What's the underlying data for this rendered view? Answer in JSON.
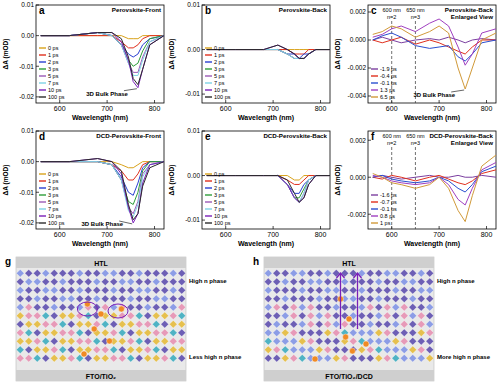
{
  "chart_data": [
    {
      "type": "line",
      "label": "a",
      "title": "Perovskite-Front",
      "x_label": "Wavelength (nm)",
      "y_label": "ΔA (mOD)",
      "xlim": [
        550,
        820
      ],
      "xticks": [
        600,
        700,
        800
      ],
      "ylim": [
        -0.022,
        0.01
      ],
      "yticks": [
        -0.02,
        -0.01,
        {
          "value": 0,
          "label": "0.00"
        },
        0.01
      ],
      "legend": "lower left",
      "annotations": [
        {
          "text": "3D Bulk Phase"
        }
      ],
      "x": [
        560,
        620,
        680,
        710,
        730,
        745,
        755,
        765,
        775,
        790,
        820
      ],
      "series": [
        {
          "name": "0 ps",
          "color": "#d9a21b",
          "values": [
            0,
            0,
            0,
            0,
            0,
            -0.001,
            -0.001,
            -0.001,
            0,
            0,
            0
          ]
        },
        {
          "name": "1 ps",
          "color": "#e0301e",
          "values": [
            0,
            0,
            0,
            0,
            -0.002,
            -0.004,
            -0.004,
            -0.003,
            -0.001,
            0,
            0
          ]
        },
        {
          "name": "2 ps",
          "color": "#2a3fd1",
          "values": [
            0,
            0,
            0.001,
            0,
            -0.003,
            -0.006,
            -0.007,
            -0.006,
            -0.003,
            -0.001,
            0
          ]
        },
        {
          "name": "3 ps",
          "color": "#2e9e3a",
          "values": [
            0,
            0,
            0.001,
            0,
            -0.003,
            -0.008,
            -0.01,
            -0.009,
            -0.005,
            -0.001,
            0
          ]
        },
        {
          "name": "5 ps",
          "color": "#9b59b6",
          "values": [
            0,
            0,
            0.001,
            0,
            -0.003,
            -0.009,
            -0.012,
            -0.012,
            -0.007,
            -0.002,
            0
          ]
        },
        {
          "name": "7 ps",
          "color": "#7fd3e6",
          "values": [
            0,
            0,
            0.001,
            0,
            -0.003,
            -0.009,
            -0.013,
            -0.013,
            -0.008,
            -0.002,
            0
          ]
        },
        {
          "name": "10 ps",
          "color": "#7a1fb8",
          "values": [
            0,
            0,
            0.001,
            0.001,
            -0.002,
            -0.008,
            -0.015,
            -0.017,
            -0.011,
            -0.003,
            0
          ]
        },
        {
          "name": "100 ps",
          "color": "#2b2b2b",
          "values": [
            0,
            0,
            0.001,
            0.001,
            -0.001,
            -0.007,
            -0.014,
            -0.016,
            -0.011,
            -0.003,
            0
          ]
        }
      ]
    },
    {
      "type": "line",
      "label": "b",
      "title": "Perovskite-Back",
      "x_label": "Wavelength (nm)",
      "y_label": "ΔA (mOD)",
      "xlim": [
        550,
        820
      ],
      "xticks": [
        600,
        700,
        800
      ],
      "ylim": [
        -0.012,
        0.01
      ],
      "yticks": [
        -0.01,
        {
          "value": 0,
          "label": "0.00"
        },
        0.01
      ],
      "legend": "lower left",
      "annotations": [],
      "x": [
        560,
        620,
        680,
        710,
        730,
        745,
        755,
        765,
        775,
        790,
        820
      ],
      "series": [
        {
          "name": "0 ps",
          "color": "#d9a21b",
          "values": [
            0,
            0,
            0,
            0,
            0,
            0,
            0,
            0,
            0,
            0,
            0
          ]
        },
        {
          "name": "1 ps",
          "color": "#e0301e",
          "values": [
            0,
            0,
            0,
            0,
            0,
            -0.001,
            -0.001,
            -0.001,
            0,
            0,
            0
          ]
        },
        {
          "name": "2 ps",
          "color": "#2a3fd1",
          "values": [
            0,
            0,
            0,
            0,
            -0.001,
            -0.001,
            -0.002,
            -0.001,
            -0.001,
            0,
            0
          ]
        },
        {
          "name": "3 ps",
          "color": "#2e9e3a",
          "values": [
            0,
            0,
            0,
            0,
            -0.001,
            -0.002,
            -0.002,
            -0.002,
            -0.001,
            0,
            0
          ]
        },
        {
          "name": "5 ps",
          "color": "#9b59b6",
          "values": [
            0,
            0,
            0,
            0,
            -0.001,
            -0.002,
            -0.002,
            -0.002,
            -0.001,
            0,
            0
          ]
        },
        {
          "name": "7 ps",
          "color": "#7fd3e6",
          "values": [
            0,
            0,
            0,
            0,
            -0.001,
            -0.002,
            -0.002,
            -0.002,
            -0.001,
            0,
            0
          ]
        },
        {
          "name": "10 ps",
          "color": "#7a1fb8",
          "values": [
            0,
            0,
            0,
            0.001,
            0,
            -0.001,
            -0.002,
            -0.002,
            -0.001,
            0,
            0
          ]
        },
        {
          "name": "100 ps",
          "color": "#2b2b2b",
          "values": [
            0,
            0,
            0,
            0.001,
            0,
            -0.001,
            -0.002,
            -0.002,
            -0.001,
            0,
            0
          ]
        }
      ]
    },
    {
      "type": "line",
      "label": "c",
      "title": "Perovskite-Back",
      "subtitle": "Enlarged View",
      "x_label": "Wavelength (nm)",
      "y_label": "ΔA (mOD)",
      "xlim": [
        550,
        820
      ],
      "xticks": [
        600,
        700,
        800
      ],
      "ylim": [
        -0.0045,
        0.0025
      ],
      "yticks": [
        -0.004,
        -0.002,
        {
          "value": 0,
          "label": "0.000"
        },
        0.002
      ],
      "legend": "lower left",
      "annotations": [
        {
          "text": "3D Bulk Phase"
        }
      ],
      "vlines": [
        {
          "x": 600,
          "label": "600 nm",
          "sub": "n=2"
        },
        {
          "x": 650,
          "label": "650 nm",
          "sub": "n=3"
        }
      ],
      "x": [
        560,
        580,
        600,
        620,
        650,
        680,
        700,
        720,
        740,
        755,
        770,
        790,
        820
      ],
      "series": [
        {
          "name": "-1.9 ps",
          "color": "#7b3fa0",
          "values": [
            0,
            0.0002,
            0,
            -0.0002,
            0,
            0.0001,
            0,
            0.0002,
            0,
            -0.0002,
            0,
            0.0001,
            0
          ]
        },
        {
          "name": "-0.4 ps",
          "color": "#e0301e",
          "values": [
            0,
            -0.0002,
            0,
            0.0002,
            -0.0003,
            0,
            -0.0002,
            -0.0005,
            -0.0008,
            -0.001,
            -0.0005,
            0,
            0
          ]
        },
        {
          "name": "-0.1 ps",
          "color": "#2a4fd0",
          "values": [
            0,
            0.0003,
            0.0005,
            0.0002,
            -0.0004,
            -0.0006,
            -0.0005,
            -0.0004,
            -0.0012,
            -0.0015,
            -0.001,
            -0.0002,
            0
          ]
        },
        {
          "name": "1.3 ps",
          "color": "#a040c0",
          "values": [
            0.0002,
            0.0004,
            0.0008,
            0.001,
            0.0006,
            0.0012,
            0.0015,
            0.001,
            -0.0005,
            -0.0018,
            -0.001,
            0.0005,
            0.0008
          ]
        },
        {
          "name": "6.5 ps",
          "color": "#d19a3a",
          "values": [
            0.0004,
            0.0006,
            0.001,
            0.0008,
            0.0002,
            0.0006,
            0.001,
            0.0005,
            -0.002,
            -0.0035,
            -0.002,
            0,
            0.0005
          ]
        }
      ]
    },
    {
      "type": "line",
      "label": "d",
      "title": "DCD-Perovskite-Front",
      "x_label": "Wavelength (nm)",
      "y_label": "ΔA (mOD)",
      "xlim": [
        550,
        820
      ],
      "xticks": [
        600,
        700,
        800
      ],
      "ylim": [
        -0.022,
        0.01
      ],
      "yticks": [
        -0.02,
        -0.01,
        {
          "value": 0,
          "label": "0.00"
        },
        0.01
      ],
      "legend": "lower left",
      "annotations": [
        {
          "text": "3D Bulk Phase"
        }
      ],
      "x": [
        560,
        620,
        680,
        710,
        730,
        745,
        755,
        765,
        775,
        790,
        820
      ],
      "series": [
        {
          "name": "0 ps",
          "color": "#d9a21b",
          "values": [
            0,
            0,
            0,
            0,
            -0.001,
            -0.002,
            -0.002,
            -0.001,
            0,
            0,
            0
          ]
        },
        {
          "name": "1 ps",
          "color": "#e0301e",
          "values": [
            0,
            0,
            0,
            -0.001,
            -0.003,
            -0.006,
            -0.006,
            -0.004,
            -0.001,
            0,
            0
          ]
        },
        {
          "name": "2 ps",
          "color": "#2a3fd1",
          "values": [
            0,
            0,
            0,
            -0.001,
            -0.005,
            -0.01,
            -0.011,
            -0.007,
            -0.002,
            0,
            0
          ]
        },
        {
          "name": "3 ps",
          "color": "#2e9e3a",
          "values": [
            0,
            0,
            0,
            -0.001,
            -0.006,
            -0.013,
            -0.014,
            -0.01,
            -0.003,
            0,
            0
          ]
        },
        {
          "name": "5 ps",
          "color": "#9b59b6",
          "values": [
            0,
            0,
            0,
            -0.001,
            -0.006,
            -0.015,
            -0.017,
            -0.013,
            -0.004,
            -0.001,
            0
          ]
        },
        {
          "name": "7 ps",
          "color": "#7fd3e6",
          "values": [
            0,
            0,
            0,
            -0.001,
            -0.006,
            -0.016,
            -0.018,
            -0.014,
            -0.005,
            -0.001,
            0
          ]
        },
        {
          "name": "10 ps",
          "color": "#7a1fb8",
          "values": [
            0,
            0,
            0.001,
            0,
            -0.004,
            -0.015,
            -0.02,
            -0.017,
            -0.007,
            -0.001,
            0
          ]
        },
        {
          "name": "100 ps",
          "color": "#2b2b2b",
          "values": [
            0,
            0,
            0.001,
            0,
            -0.003,
            -0.014,
            -0.019,
            -0.017,
            -0.008,
            -0.002,
            0
          ]
        }
      ]
    },
    {
      "type": "line",
      "label": "e",
      "title": "DCD-Perovskite-Back",
      "x_label": "Wavelength (nm)",
      "y_label": "ΔA (mOD)",
      "xlim": [
        550,
        820
      ],
      "xticks": [
        600,
        700,
        800
      ],
      "ylim": [
        -0.012,
        0.01
      ],
      "yticks": [
        -0.01,
        {
          "value": 0,
          "label": "0.00"
        },
        0.01
      ],
      "legend": "lower left",
      "annotations": [],
      "x": [
        560,
        620,
        680,
        710,
        730,
        745,
        755,
        765,
        775,
        790,
        820
      ],
      "series": [
        {
          "name": "0 ps",
          "color": "#d9a21b",
          "values": [
            0,
            0,
            0,
            0,
            0,
            -0.001,
            -0.001,
            0,
            0,
            0,
            0
          ]
        },
        {
          "name": "1 ps",
          "color": "#e0301e",
          "values": [
            0,
            0,
            0,
            0,
            -0.001,
            -0.002,
            -0.002,
            -0.001,
            0,
            0,
            0
          ]
        },
        {
          "name": "2 ps",
          "color": "#2a3fd1",
          "values": [
            0,
            0,
            0,
            0,
            -0.002,
            -0.004,
            -0.004,
            -0.002,
            -0.001,
            0,
            0
          ]
        },
        {
          "name": "3 ps",
          "color": "#2e9e3a",
          "values": [
            0,
            0,
            0,
            0,
            -0.002,
            -0.005,
            -0.005,
            -0.003,
            -0.001,
            0,
            0
          ]
        },
        {
          "name": "5 ps",
          "color": "#9b59b6",
          "values": [
            0,
            0,
            0,
            0,
            -0.002,
            -0.005,
            -0.006,
            -0.004,
            -0.001,
            0,
            0
          ]
        },
        {
          "name": "7 ps",
          "color": "#7fd3e6",
          "values": [
            0,
            0,
            0,
            0,
            -0.002,
            -0.005,
            -0.006,
            -0.004,
            -0.001,
            0,
            0
          ]
        },
        {
          "name": "10 ps",
          "color": "#7a1fb8",
          "values": [
            0,
            0,
            0,
            0,
            -0.002,
            -0.005,
            -0.006,
            -0.005,
            -0.002,
            0,
            0
          ]
        },
        {
          "name": "100 ps",
          "color": "#2b2b2b",
          "values": [
            0,
            0,
            0,
            0,
            -0.001,
            -0.004,
            -0.006,
            -0.005,
            -0.002,
            0,
            0
          ]
        }
      ]
    },
    {
      "type": "line",
      "label": "f",
      "title": "DCD-Perovskite-Back",
      "subtitle": "Enlarged View",
      "x_label": "Wavelength (nm)",
      "y_label": "ΔA (mOD)",
      "xlim": [
        550,
        820
      ],
      "xticks": [
        600,
        700,
        800
      ],
      "ylim": [
        -0.0028,
        0.0025
      ],
      "yticks": [
        -0.002,
        {
          "value": 0,
          "label": "0.000"
        },
        0.002
      ],
      "legend": "lower left",
      "annotations": [],
      "vlines": [
        {
          "x": 600,
          "label": "600 nm",
          "sub": "n=2"
        },
        {
          "x": 650,
          "label": "650 nm",
          "sub": "n=3"
        }
      ],
      "x": [
        560,
        580,
        600,
        620,
        650,
        680,
        700,
        720,
        740,
        755,
        770,
        790,
        820
      ],
      "series": [
        {
          "name": "-1.6 ps",
          "color": "#7b3fa0",
          "values": [
            0,
            0.0001,
            0,
            -0.0001,
            0,
            0.0001,
            0,
            0,
            0.0001,
            0,
            0,
            0.0001,
            0
          ]
        },
        {
          "name": "-0.7 ps",
          "color": "#e0301e",
          "values": [
            0,
            -0.0001,
            0.0001,
            0,
            -0.0002,
            0,
            0.0001,
            -0.0001,
            -0.0003,
            -0.0004,
            -0.0002,
            0.0002,
            0.0004
          ]
        },
        {
          "name": "-0.1 ps",
          "color": "#2a4fd0",
          "values": [
            0,
            0.0001,
            -0.0001,
            -0.0002,
            -0.0003,
            -0.0002,
            0,
            -0.0002,
            -0.0006,
            -0.0008,
            -0.0004,
            0.0003,
            0.0006
          ]
        },
        {
          "name": "0.8 ps",
          "color": "#a040c0",
          "values": [
            0.0001,
            0,
            -0.0002,
            -0.0003,
            -0.0004,
            -0.0003,
            0,
            -0.0004,
            -0.0012,
            -0.0015,
            -0.0006,
            0.0004,
            0.0008
          ]
        },
        {
          "name": "1 ps",
          "color": "#d19a3a",
          "values": [
            0.0002,
            0,
            -0.0003,
            -0.0004,
            -0.0006,
            -0.0004,
            0,
            -0.0006,
            -0.0018,
            -0.0024,
            -0.001,
            0.0006,
            0.0012
          ]
        }
      ]
    }
  ],
  "diagrams": [
    {
      "label": "g",
      "top": "HTL",
      "bottom": "FTO/TiO₂",
      "upper_phase": "High n phase",
      "lower_phase": "Less high n phase"
    },
    {
      "label": "h",
      "top": "HTL",
      "bottom": "FTO/TiO₂/DCD",
      "upper_phase": "High n phase",
      "lower_phase": "More high n phase"
    }
  ]
}
